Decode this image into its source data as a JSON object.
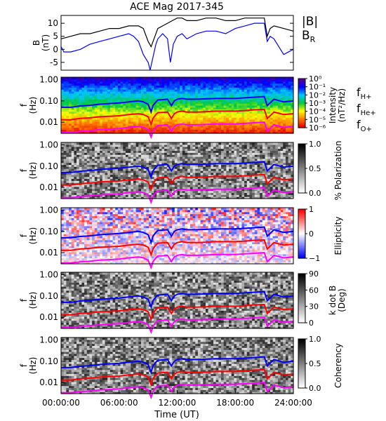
{
  "figure": {
    "title": "ACE Mag 2017-345",
    "time_axis": {
      "label": "Time (UT)",
      "ticks": [
        "00:00:00",
        "06:00:00",
        "12:00:00",
        "18:00:00",
        "24:00:00"
      ],
      "range_hours": [
        0,
        24
      ]
    }
  },
  "chart_data": [
    {
      "type": "line",
      "ylabel": "B",
      "yunit": "(nT)",
      "ylim": [
        -8,
        13
      ],
      "yticks": [
        "10",
        "5",
        "0",
        "-5"
      ],
      "yticks_values": [
        10,
        5,
        0,
        -5
      ],
      "legend": [
        "|B|",
        "B_R"
      ],
      "series": [
        {
          "name": "|B|",
          "color": "#000000",
          "x": [
            0,
            1,
            2,
            3,
            4,
            5,
            6,
            7,
            8,
            8.5,
            9,
            9.3,
            9.6,
            10,
            10.5,
            11,
            11.5,
            12,
            12.5,
            13,
            14,
            15,
            16,
            17,
            18,
            19,
            20,
            21,
            21.3,
            21.6,
            22,
            23,
            24
          ],
          "y": [
            4,
            5,
            6,
            6,
            7,
            8,
            8,
            9,
            9,
            8,
            3,
            1,
            4,
            8,
            9,
            10,
            11,
            12,
            12,
            11,
            11,
            12,
            12,
            11,
            11,
            12,
            12,
            12,
            5,
            8,
            9,
            8,
            7
          ]
        },
        {
          "name": "B_R",
          "color": "#0000ff",
          "x": [
            0,
            0.3,
            1,
            2,
            3,
            4,
            5,
            6,
            7,
            7.5,
            8,
            8.5,
            9,
            9.2,
            9.5,
            9.8,
            10,
            10.5,
            11,
            11.3,
            11.6,
            12,
            12.5,
            13,
            14,
            15,
            16,
            17,
            18,
            19,
            20,
            21,
            21.3,
            21.6,
            22,
            23,
            24
          ],
          "y": [
            1,
            -1,
            -1,
            0,
            2,
            3,
            4,
            5,
            6,
            5,
            3,
            -2,
            -5,
            -8,
            -3,
            2,
            4,
            6,
            4,
            -5,
            2,
            5,
            6,
            4,
            6,
            7,
            7,
            6,
            8,
            9,
            10,
            10,
            3,
            5,
            4,
            -2,
            0
          ]
        }
      ]
    },
    {
      "type": "heatmap",
      "quantity": "Intensity",
      "colorbar_label": "Intensity",
      "colorbar_unit": "(nT²/Hz)",
      "colorbar_ticks": [
        "10⁰",
        "10⁻¹",
        "10⁻²",
        "10⁻³",
        "10⁻⁴",
        "10⁻⁵",
        "10⁻⁶"
      ],
      "colorbar_scale": "rainbow"
    },
    {
      "type": "heatmap",
      "quantity": "% Polarization",
      "colorbar_label": "% Polarization",
      "colorbar_ticks": [
        "1.0",
        "0.5",
        "0.0"
      ],
      "colorbar_scale": "grey"
    },
    {
      "type": "heatmap",
      "quantity": "Ellipticity",
      "colorbar_label": "Ellipticity",
      "colorbar_ticks": [
        "1",
        "0",
        "−1"
      ],
      "colorbar_scale": "blue-white-red"
    },
    {
      "type": "heatmap",
      "quantity": "k dot B",
      "colorbar_label": "k dot B",
      "colorbar_unit": "(Deg)",
      "colorbar_ticks": [
        "90",
        "60",
        "30",
        "0"
      ],
      "colorbar_scale": "grey"
    },
    {
      "type": "heatmap",
      "quantity": "Coherency",
      "colorbar_label": "Coherency",
      "colorbar_ticks": [
        "1.0",
        "0.5",
        "0.0"
      ],
      "colorbar_scale": "grey"
    }
  ],
  "spectrogram_axes": {
    "ylabel": "f",
    "yunit": "(Hz)",
    "yticks": [
      "1.00",
      "0.10",
      "0.01"
    ],
    "yticks_values": [
      1.0,
      0.1,
      0.01
    ],
    "ylim": [
      0.003,
      1.3
    ],
    "yscale": "log"
  },
  "gyro_lines": {
    "legend": [
      "f_H+",
      "f_He+",
      "f_O+"
    ],
    "series": [
      {
        "name": "f_H+",
        "color": "#0000ff",
        "x": [
          0,
          1,
          2,
          3,
          4,
          5,
          6,
          7,
          8,
          8.5,
          9,
          9.3,
          9.5,
          9.8,
          10,
          10.5,
          11,
          11.4,
          11.7,
          12,
          12.5,
          13,
          14,
          15,
          16,
          17,
          18,
          19,
          20,
          21,
          21.3,
          21.6,
          22,
          23,
          24
        ],
        "y": [
          0.05,
          0.05,
          0.058,
          0.062,
          0.07,
          0.075,
          0.08,
          0.09,
          0.1,
          0.09,
          0.07,
          0.03,
          0.06,
          0.09,
          0.11,
          0.115,
          0.12,
          0.06,
          0.1,
          0.12,
          0.13,
          0.12,
          0.12,
          0.125,
          0.13,
          0.13,
          0.13,
          0.14,
          0.15,
          0.16,
          0.06,
          0.08,
          0.12,
          0.09,
          0.1
        ]
      },
      {
        "name": "f_He+",
        "color": "#ff0000",
        "x": [
          0,
          1,
          2,
          3,
          4,
          5,
          6,
          7,
          8,
          8.5,
          9,
          9.3,
          9.5,
          9.8,
          10,
          10.5,
          11,
          11.4,
          11.7,
          12,
          12.5,
          13,
          14,
          15,
          16,
          17,
          18,
          19,
          20,
          21,
          21.3,
          21.6,
          22,
          23,
          24
        ],
        "y": [
          0.013,
          0.013,
          0.015,
          0.016,
          0.018,
          0.019,
          0.02,
          0.023,
          0.025,
          0.023,
          0.018,
          0.008,
          0.015,
          0.023,
          0.028,
          0.029,
          0.03,
          0.015,
          0.025,
          0.03,
          0.033,
          0.03,
          0.03,
          0.031,
          0.033,
          0.033,
          0.033,
          0.035,
          0.038,
          0.04,
          0.015,
          0.02,
          0.03,
          0.023,
          0.025
        ]
      },
      {
        "name": "f_O+",
        "color": "#ff00ff",
        "x": [
          0,
          1,
          2,
          3,
          4,
          5,
          6,
          7,
          8,
          8.5,
          9,
          9.3,
          9.5,
          9.8,
          10,
          10.5,
          11,
          11.4,
          11.7,
          12,
          12.5,
          13,
          14,
          15,
          16,
          17,
          18,
          19,
          20,
          21,
          21.3,
          21.6,
          22,
          23,
          24
        ],
        "y": [
          0.0033,
          0.0033,
          0.0037,
          0.004,
          0.0045,
          0.0047,
          0.005,
          0.0057,
          0.0063,
          0.0057,
          0.0045,
          0.002,
          0.0038,
          0.0057,
          0.007,
          0.0072,
          0.0075,
          0.0038,
          0.0063,
          0.0075,
          0.0082,
          0.0075,
          0.0075,
          0.0078,
          0.0082,
          0.0082,
          0.0082,
          0.0088,
          0.0094,
          0.01,
          0.0038,
          0.005,
          0.0075,
          0.0057,
          0.0063
        ]
      }
    ]
  },
  "legend_colors": {
    "absB": "#000000",
    "BR": "#0000ff",
    "fH": "#0000ff",
    "fHe": "#ff0000",
    "fO": "#ff00ff"
  }
}
